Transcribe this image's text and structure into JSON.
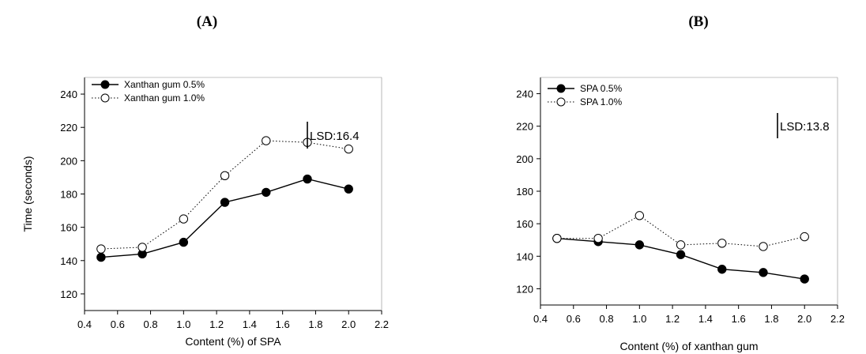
{
  "chart_data": [
    {
      "type": "line",
      "panel_label": "(A)",
      "title": "",
      "xlabel": "Content (%) of SPA",
      "ylabel": "Time (seconds)",
      "xlim": [
        0.4,
        2.2
      ],
      "ylim": [
        110,
        250
      ],
      "xticks": [
        "0.4",
        "0.6",
        "0.8",
        "1.0",
        "1.2",
        "1.4",
        "1.6",
        "1.8",
        "2.0",
        "2.2"
      ],
      "yticks": [
        "120",
        "140",
        "160",
        "180",
        "200",
        "220",
        "240"
      ],
      "x": [
        0.5,
        0.75,
        1.0,
        1.25,
        1.5,
        1.75,
        2.0
      ],
      "series": [
        {
          "name": "Xanthan gum 0.5%",
          "marker": "filled-circle",
          "line": "solid",
          "values": [
            142,
            144,
            151,
            175,
            181,
            189,
            183
          ]
        },
        {
          "name": "Xanthan gum 1.0%",
          "marker": "open-circle",
          "line": "dotted",
          "values": [
            147,
            148,
            165,
            191,
            212,
            211,
            207
          ]
        }
      ],
      "lsd": {
        "label": "LSD:16.4",
        "value": 16.4
      },
      "legend_position": "top-left",
      "grid": false
    },
    {
      "type": "line",
      "panel_label": "(B)",
      "title": "",
      "xlabel": "Content (%) of xanthan gum",
      "ylabel": "",
      "xlim": [
        0.4,
        2.2
      ],
      "ylim": [
        110,
        250
      ],
      "xticks": [
        "0.4",
        "0.6",
        "0.8",
        "1.0",
        "1.2",
        "1.4",
        "1.6",
        "1.8",
        "2.0",
        "2.2"
      ],
      "yticks": [
        "120",
        "140",
        "160",
        "180",
        "200",
        "220",
        "240"
      ],
      "x": [
        0.5,
        0.75,
        1.0,
        1.25,
        1.5,
        1.75,
        2.0
      ],
      "series": [
        {
          "name": "SPA 0.5%",
          "marker": "filled-circle",
          "line": "solid",
          "values": [
            151,
            149,
            147,
            141,
            132,
            130,
            126
          ]
        },
        {
          "name": "SPA 1.0%",
          "marker": "open-circle",
          "line": "dotted",
          "values": [
            151,
            151,
            165,
            147,
            148,
            146,
            152
          ]
        }
      ],
      "lsd": {
        "label": "LSD:13.8",
        "value": 13.8
      },
      "legend_position": "top-left",
      "grid": false
    }
  ]
}
